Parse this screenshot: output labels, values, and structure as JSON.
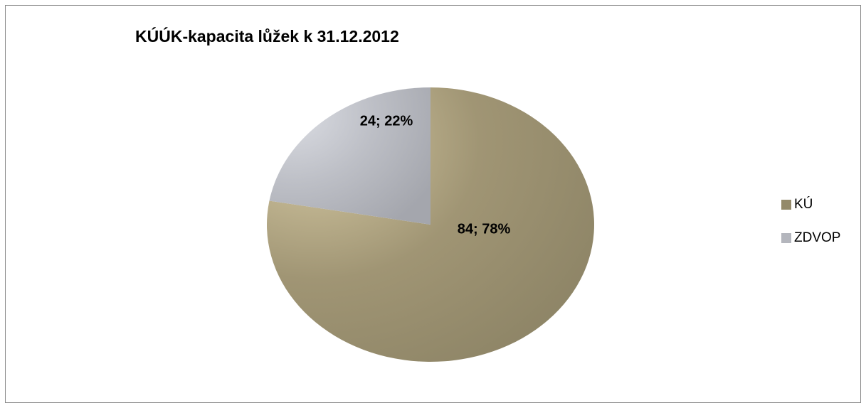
{
  "chart_data": {
    "type": "pie",
    "title": "KÚÚK-kapacita lůžek k 31.12.2012",
    "categories": [
      "KÚ",
      "ZDVOP"
    ],
    "values": [
      84,
      24
    ],
    "percentages": [
      78,
      22
    ],
    "data_labels": [
      "84; 78%",
      "24; 22%"
    ],
    "colors": [
      "#948a6a",
      "#b4b6bd"
    ],
    "legend_position": "right"
  }
}
